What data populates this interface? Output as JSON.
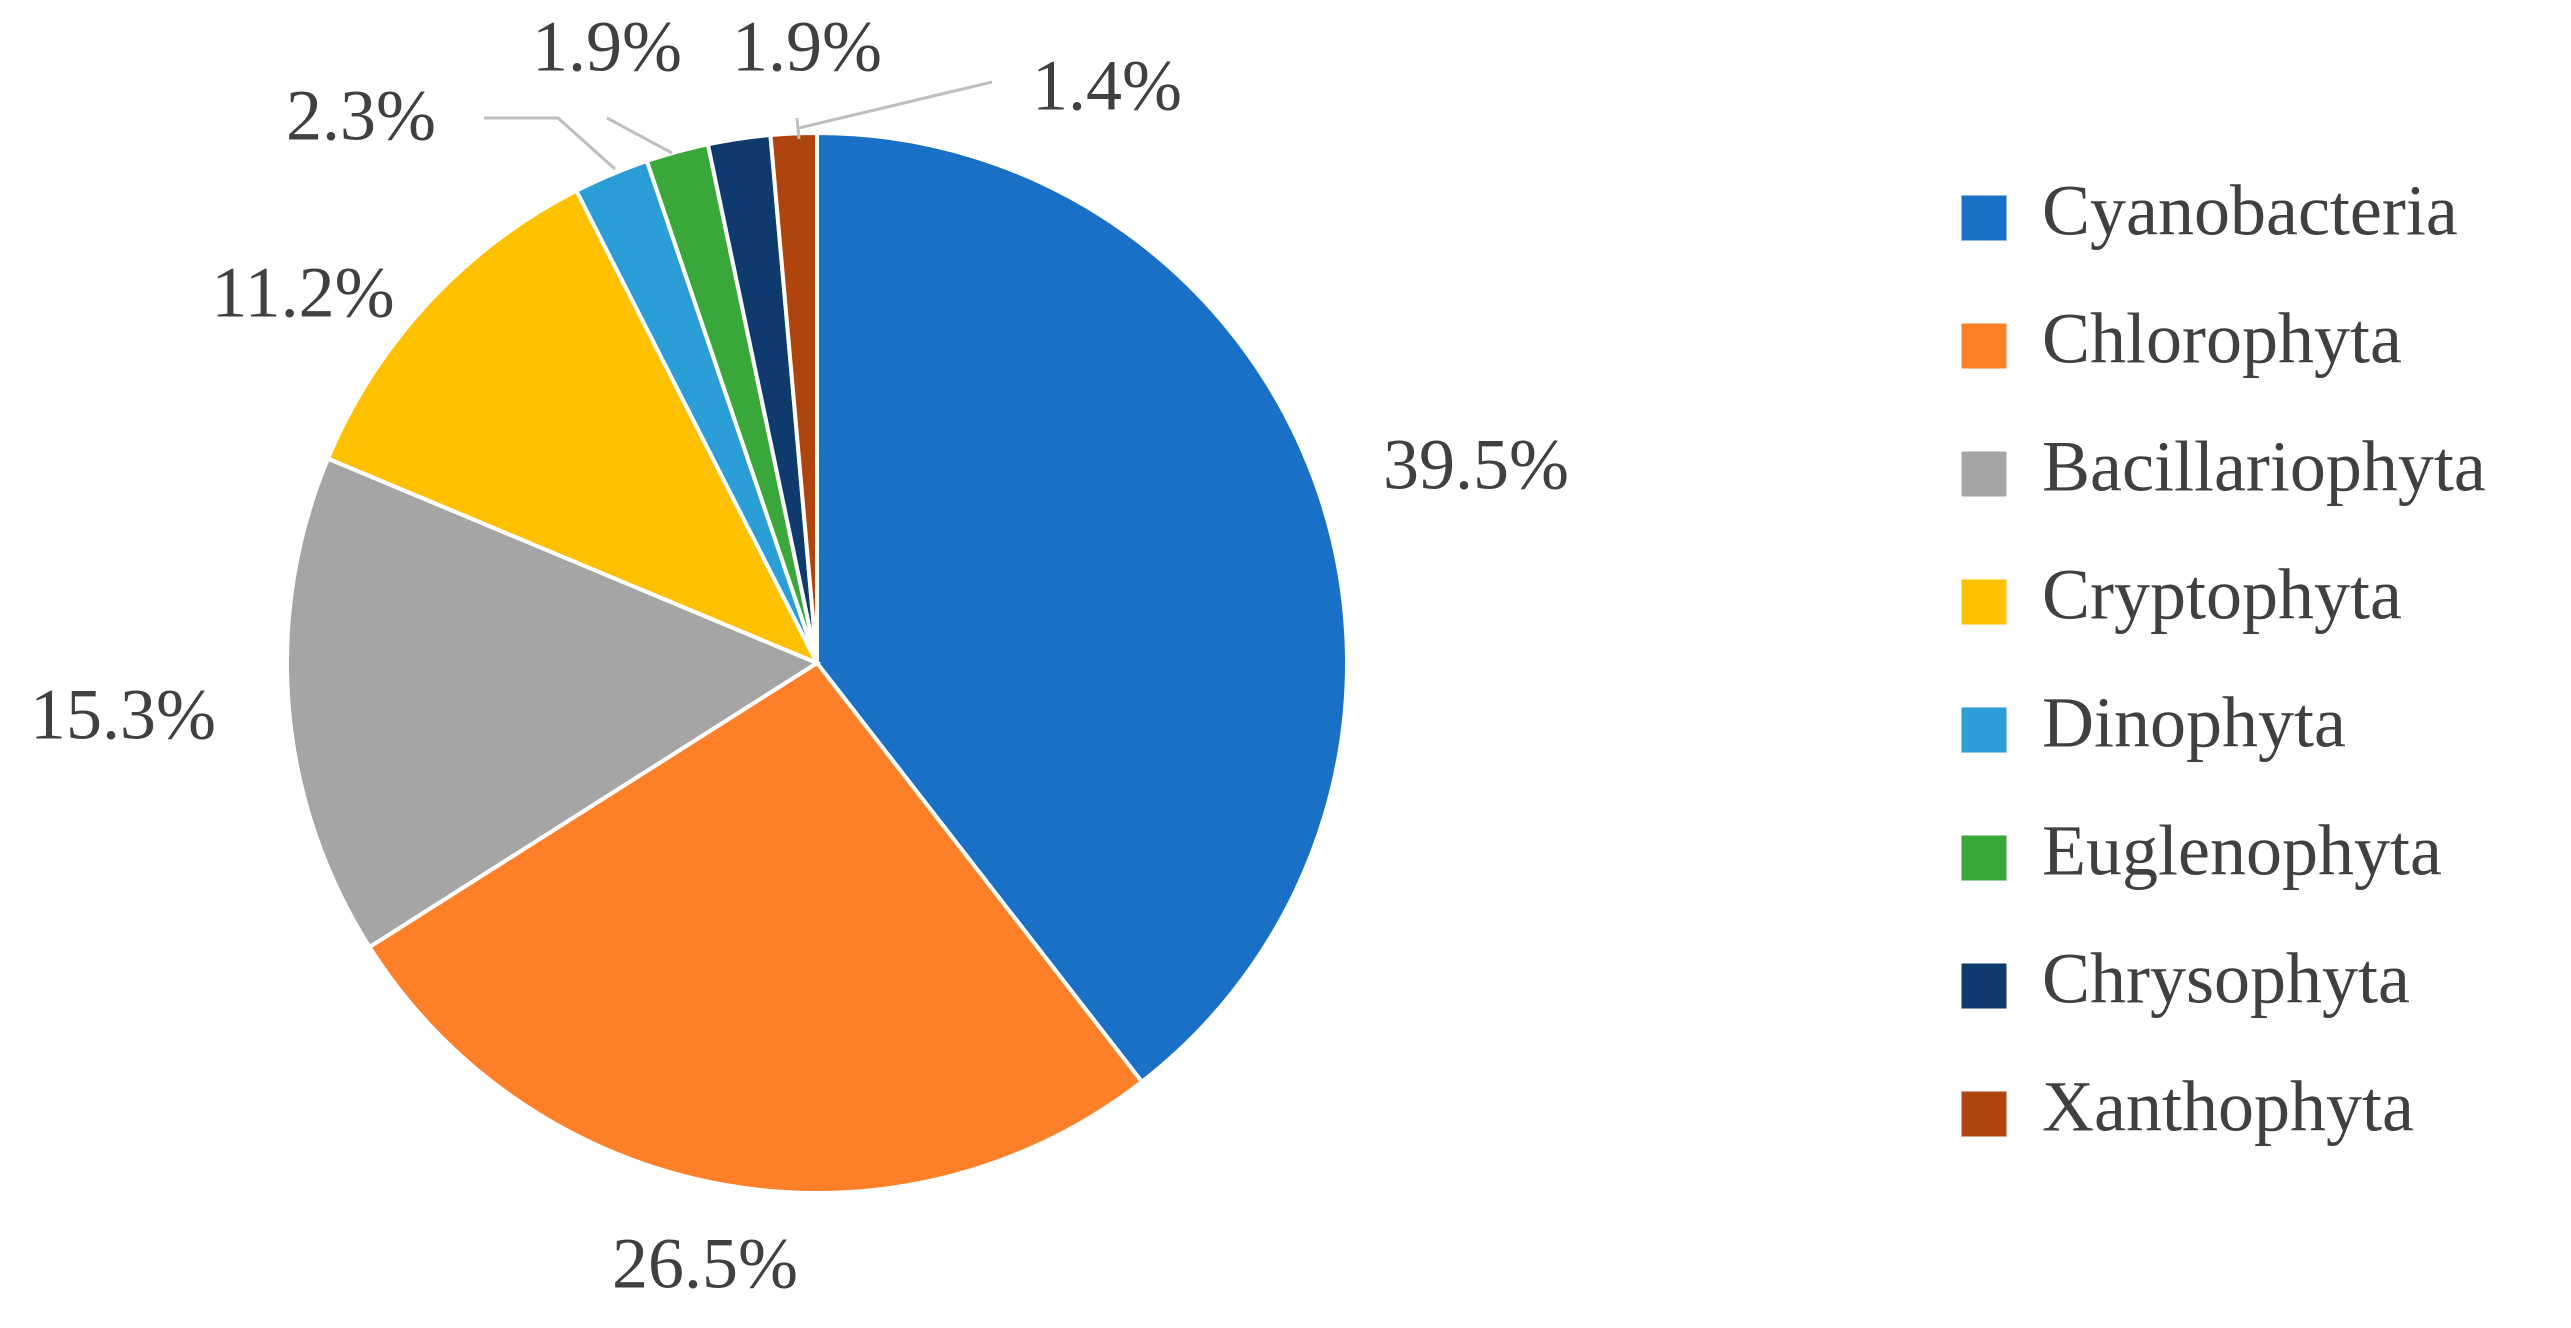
{
  "chart_data": {
    "type": "pie",
    "categories": [
      "Cyanobacteria",
      "Chlorophyta",
      "Bacillariophyta",
      "Cryptophyta",
      "Dinophyta",
      "Euglenophyta",
      "Chrysophyta",
      "Xanthophyta"
    ],
    "values": [
      39.5,
      26.5,
      15.3,
      11.2,
      2.3,
      1.9,
      1.9,
      1.4
    ],
    "value_labels": [
      "39.5%",
      "26.5%",
      "15.3%",
      "11.2%",
      "2.3%",
      "1.9%",
      "1.9%",
      "1.4%"
    ],
    "colors": [
      "#1a6fc6",
      "#fd7f27",
      "#a5a5a5",
      "#ffc000",
      "#2b9ed8",
      "#3aa73a",
      "#0e3a6e",
      "#b0440e"
    ],
    "legend": "right"
  }
}
